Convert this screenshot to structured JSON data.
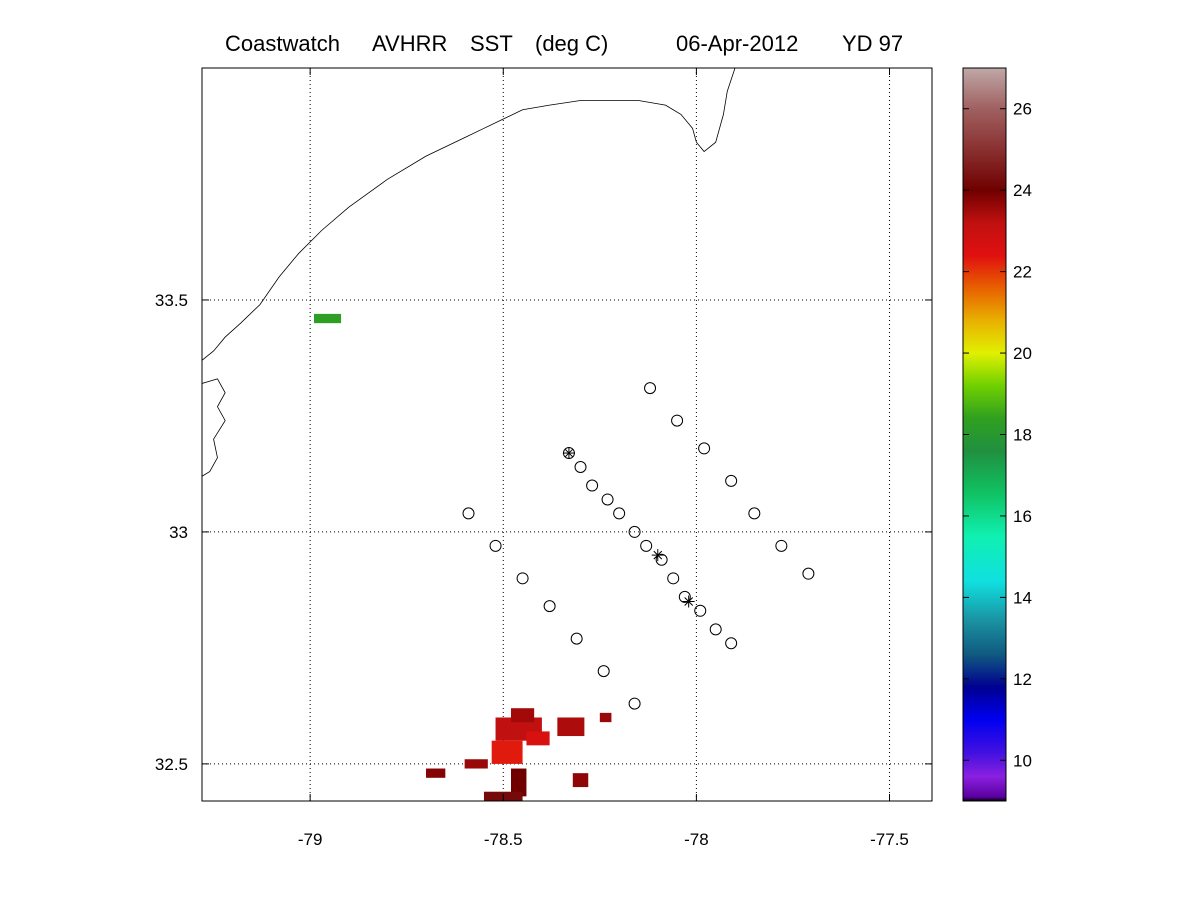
{
  "chart_data": {
    "type": "scatter",
    "title": {
      "parts": [
        "Coastwatch",
        "AVHRR",
        "SST",
        "(deg C)",
        "06-Apr-2012",
        "YD 97"
      ]
    },
    "map": {
      "xlim": [
        -79.28,
        -77.39
      ],
      "ylim": [
        32.42,
        34.0
      ],
      "x_ticks": [
        -79,
        -78.5,
        -78,
        -77.5
      ],
      "x_tick_labels": [
        "-79",
        "-78.5",
        "-78",
        "-77.5"
      ],
      "y_ticks": [
        32.5,
        33,
        33.5
      ],
      "y_tick_labels": [
        "32.5",
        "33",
        "33.5"
      ],
      "grid": "dotted",
      "coastline": [
        [
          -79.28,
          33.37
        ],
        [
          -79.25,
          33.39
        ],
        [
          -79.22,
          33.42
        ],
        [
          -79.18,
          33.45
        ],
        [
          -79.13,
          33.49
        ],
        [
          -79.08,
          33.55
        ],
        [
          -79.03,
          33.6
        ],
        [
          -78.97,
          33.65
        ],
        [
          -78.9,
          33.7
        ],
        [
          -78.8,
          33.76
        ],
        [
          -78.7,
          33.81
        ],
        [
          -78.6,
          33.85
        ],
        [
          -78.55,
          33.87
        ],
        [
          -78.5,
          33.89
        ],
        [
          -78.45,
          33.91
        ],
        [
          -78.38,
          33.92
        ],
        [
          -78.3,
          33.93
        ],
        [
          -78.22,
          33.93
        ],
        [
          -78.15,
          33.93
        ],
        [
          -78.08,
          33.92
        ],
        [
          -78.04,
          33.9
        ],
        [
          -78.01,
          33.87
        ],
        [
          -78.0,
          33.84
        ],
        [
          -77.98,
          33.82
        ],
        [
          -77.95,
          33.84
        ],
        [
          -77.93,
          33.9
        ],
        [
          -77.92,
          33.95
        ],
        [
          -77.9,
          34.0
        ]
      ],
      "inlets": [
        [
          [
            -79.28,
            33.32
          ],
          [
            -79.24,
            33.33
          ],
          [
            -79.22,
            33.3
          ],
          [
            -79.24,
            33.27
          ],
          [
            -79.22,
            33.24
          ],
          [
            -79.25,
            33.2
          ],
          [
            -79.24,
            33.16
          ],
          [
            -79.26,
            33.13
          ],
          [
            -79.28,
            33.12
          ]
        ]
      ],
      "transect_points": [
        [
          -78.12,
          33.31
        ],
        [
          -78.05,
          33.24
        ],
        [
          -77.98,
          33.18
        ],
        [
          -77.91,
          33.11
        ],
        [
          -77.85,
          33.04
        ],
        [
          -77.78,
          32.97
        ],
        [
          -77.71,
          32.91
        ],
        [
          -78.59,
          33.04
        ],
        [
          -78.52,
          32.97
        ],
        [
          -78.45,
          32.9
        ],
        [
          -78.38,
          32.84
        ],
        [
          -78.31,
          32.77
        ],
        [
          -78.24,
          32.7
        ],
        [
          -78.16,
          32.63
        ],
        [
          -78.33,
          33.17
        ],
        [
          -78.3,
          33.14
        ],
        [
          -78.27,
          33.1
        ],
        [
          -78.23,
          33.07
        ],
        [
          -78.2,
          33.04
        ],
        [
          -78.16,
          33.0
        ],
        [
          -78.13,
          32.97
        ],
        [
          -78.09,
          32.94
        ],
        [
          -78.06,
          32.9
        ],
        [
          -78.03,
          32.86
        ],
        [
          -77.99,
          32.83
        ],
        [
          -77.95,
          32.79
        ],
        [
          -77.91,
          32.76
        ]
      ],
      "station_markers": [
        [
          -78.33,
          33.17
        ],
        [
          -78.1,
          32.95
        ],
        [
          -78.02,
          32.85
        ]
      ],
      "sst_patches": [
        {
          "x": -78.99,
          "y": 33.45,
          "w": 0.07,
          "h": 0.02,
          "temp": 18.3
        },
        {
          "x": -78.52,
          "y": 32.55,
          "w": 0.12,
          "h": 0.05,
          "temp": 23.2
        },
        {
          "x": -78.44,
          "y": 32.54,
          "w": 0.06,
          "h": 0.03,
          "temp": 22.6
        },
        {
          "x": -78.36,
          "y": 32.56,
          "w": 0.07,
          "h": 0.04,
          "temp": 23.4
        },
        {
          "x": -78.53,
          "y": 32.5,
          "w": 0.08,
          "h": 0.05,
          "temp": 22.3
        },
        {
          "x": -78.6,
          "y": 32.49,
          "w": 0.06,
          "h": 0.02,
          "temp": 23.6
        },
        {
          "x": -78.7,
          "y": 32.47,
          "w": 0.05,
          "h": 0.02,
          "temp": 23.8
        },
        {
          "x": -78.48,
          "y": 32.43,
          "w": 0.04,
          "h": 0.06,
          "temp": 24.0
        },
        {
          "x": -78.55,
          "y": 32.42,
          "w": 0.1,
          "h": 0.02,
          "temp": 24.2
        },
        {
          "x": -78.48,
          "y": 32.59,
          "w": 0.06,
          "h": 0.03,
          "temp": 23.5
        },
        {
          "x": -78.32,
          "y": 32.45,
          "w": 0.04,
          "h": 0.03,
          "temp": 23.7
        },
        {
          "x": -78.25,
          "y": 32.59,
          "w": 0.03,
          "h": 0.02,
          "temp": 23.6
        }
      ]
    },
    "colorbar": {
      "range": [
        9,
        27
      ],
      "ticks": [
        10,
        12,
        14,
        16,
        18,
        20,
        22,
        24,
        26
      ],
      "tick_labels": [
        "10",
        "12",
        "14",
        "16",
        "18",
        "20",
        "22",
        "24",
        "26"
      ],
      "colormap": [
        {
          "t": 9,
          "color": "#000000"
        },
        {
          "t": 9.1,
          "color": "#5a00a0"
        },
        {
          "t": 9.6,
          "color": "#8a20e0"
        },
        {
          "t": 10.2,
          "color": "#4010e0"
        },
        {
          "t": 11,
          "color": "#0000f0"
        },
        {
          "t": 11.8,
          "color": "#000090"
        },
        {
          "t": 12.6,
          "color": "#105a80"
        },
        {
          "t": 13.4,
          "color": "#1a90a0"
        },
        {
          "t": 14.4,
          "color": "#10e0e0"
        },
        {
          "t": 15.5,
          "color": "#10f0b0"
        },
        {
          "t": 16.6,
          "color": "#10c060"
        },
        {
          "t": 17.6,
          "color": "#209040"
        },
        {
          "t": 18.4,
          "color": "#30a020"
        },
        {
          "t": 19.2,
          "color": "#70d000"
        },
        {
          "t": 20,
          "color": "#e0f000"
        },
        {
          "t": 20.8,
          "color": "#e8b000"
        },
        {
          "t": 21.6,
          "color": "#e86000"
        },
        {
          "t": 22.4,
          "color": "#e01010"
        },
        {
          "t": 23.2,
          "color": "#c01010"
        },
        {
          "t": 24,
          "color": "#700000"
        },
        {
          "t": 25,
          "color": "#8a3030"
        },
        {
          "t": 26,
          "color": "#a06060"
        },
        {
          "t": 27,
          "color": "#c0a8a8"
        }
      ]
    }
  }
}
